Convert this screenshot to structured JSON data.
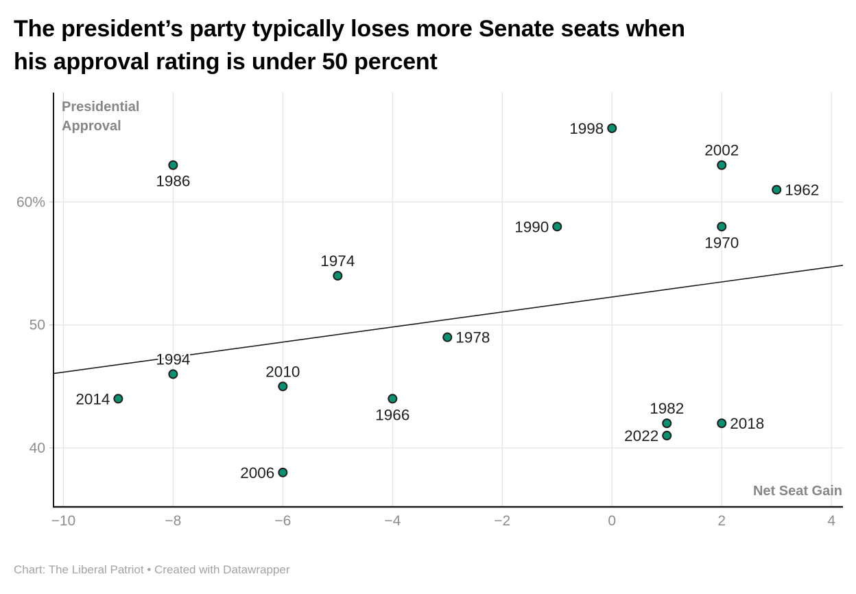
{
  "header": {
    "title": "The president’s party typically loses more Senate seats when\nhis approval rating is under 50 percent"
  },
  "footer": {
    "credit": "Chart: The Liberal Patriot • Created with Datawrapper"
  },
  "chart_data": {
    "type": "scatter",
    "title": "The president’s party typically loses more Senate seats when his approval rating is under 50 percent",
    "x_axis": {
      "label": "Net Seat Gain",
      "tick_values": [
        -10,
        -8,
        -6,
        -4,
        -2,
        0,
        2,
        4
      ],
      "tick_labels": [
        "−10",
        "−8",
        "−6",
        "−4",
        "−2",
        "0",
        "2",
        "4"
      ],
      "range": [
        -10.18,
        4.21
      ],
      "grid": true
    },
    "y_axis": {
      "label": "Presidential\nApproval",
      "tick_values": [
        40,
        50,
        60
      ],
      "tick_labels": [
        "40",
        "50",
        "60%"
      ],
      "range": [
        35.2,
        68.9
      ],
      "grid": true
    },
    "points": [
      {
        "year": "1962",
        "net_seat_gain": 3,
        "approval": 61,
        "label_side": "right"
      },
      {
        "year": "1966",
        "net_seat_gain": -4,
        "approval": 44,
        "label_side": "below"
      },
      {
        "year": "1970",
        "net_seat_gain": 2,
        "approval": 58,
        "label_side": "below"
      },
      {
        "year": "1974",
        "net_seat_gain": -5,
        "approval": 54,
        "label_side": "above"
      },
      {
        "year": "1978",
        "net_seat_gain": -3,
        "approval": 49,
        "label_side": "right"
      },
      {
        "year": "1982",
        "net_seat_gain": 1,
        "approval": 42,
        "label_side": "above"
      },
      {
        "year": "1986",
        "net_seat_gain": -8,
        "approval": 63,
        "label_side": "below"
      },
      {
        "year": "1990",
        "net_seat_gain": -1,
        "approval": 58,
        "label_side": "left"
      },
      {
        "year": "1994",
        "net_seat_gain": -8,
        "approval": 46,
        "label_side": "above"
      },
      {
        "year": "1998",
        "net_seat_gain": 0,
        "approval": 66,
        "label_side": "left"
      },
      {
        "year": "2002",
        "net_seat_gain": 2,
        "approval": 63,
        "label_side": "above"
      },
      {
        "year": "2006",
        "net_seat_gain": -6,
        "approval": 38,
        "label_side": "left"
      },
      {
        "year": "2010",
        "net_seat_gain": -6,
        "approval": 45,
        "label_side": "above"
      },
      {
        "year": "2014",
        "net_seat_gain": -9,
        "approval": 44,
        "label_side": "left"
      },
      {
        "year": "2018",
        "net_seat_gain": 2,
        "approval": 42,
        "label_side": "right"
      },
      {
        "year": "2022",
        "net_seat_gain": 1,
        "approval": 41,
        "label_side": "left"
      }
    ],
    "trend_line": {
      "x1": -10.18,
      "y1": 46.05,
      "x2": 4.21,
      "y2": 54.85
    },
    "legend_position": "none",
    "colors": {
      "dot_fill": "#0e8f72",
      "dot_stroke": "#1d1d1d",
      "trend": "#1a1a1a",
      "grid": "#e3e3e3",
      "y_tick_mark": "#c8c8c8",
      "axis": "#1a1a1a",
      "tick_text": "#8d8d8d",
      "axis_title_text": "#868686",
      "point_label_text": "#1d1d1d"
    }
  }
}
